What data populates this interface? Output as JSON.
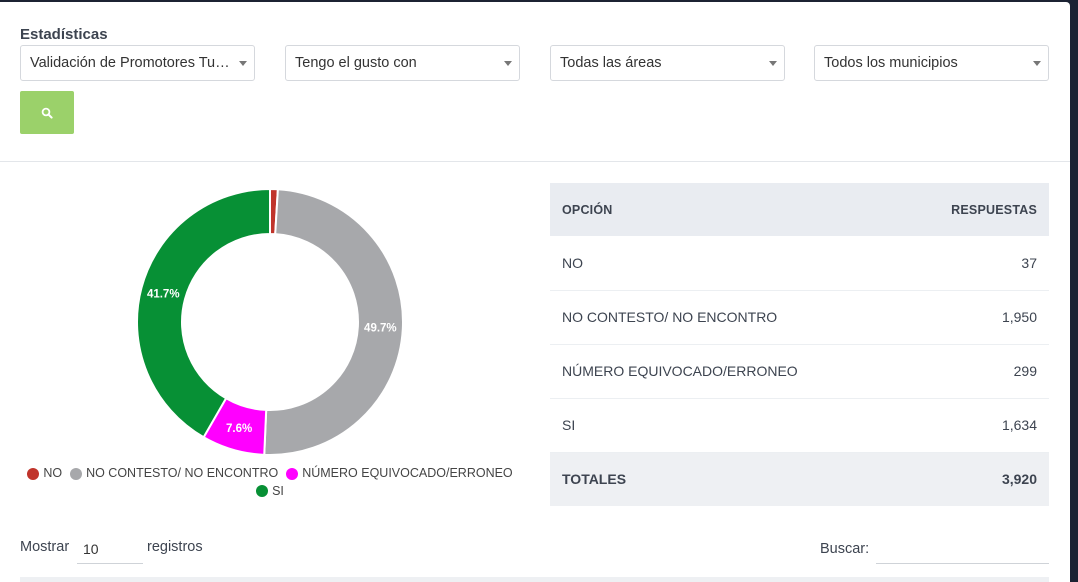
{
  "page": {
    "title": "Estadísticas"
  },
  "filters": [
    {
      "value": "Validación de Promotores Tulancingo"
    },
    {
      "value": "Tengo el gusto con"
    },
    {
      "value": "Todas las áreas"
    },
    {
      "value": "Todos los municipios"
    }
  ],
  "search_button": {
    "icon": "search-icon"
  },
  "colors": {
    "no": "#c0342b",
    "no_contesto": "#a7a8ab",
    "numero_equivocado": "#ff00ff",
    "si": "#079035",
    "search_button": "#9bd16a"
  },
  "chart_data": {
    "type": "pie",
    "categories": [
      "NO",
      "NO CONTESTO/ NO ENCONTRO",
      "NÚMERO EQUIVOCADO/ERRONEO",
      "SI"
    ],
    "values": [
      37,
      1950,
      299,
      1634
    ],
    "labels": [
      "",
      "49.7%",
      "7.6%",
      "41.7%"
    ],
    "colors": [
      "#c0342b",
      "#a7a8ab",
      "#ff00ff",
      "#079035"
    ],
    "legend": "bottom"
  },
  "table": {
    "headers": [
      "OPCIÓN",
      "RESPUESTAS"
    ],
    "rows": [
      [
        "NO",
        "37"
      ],
      [
        "NO CONTESTO/ NO ENCONTRO",
        "1,950"
      ],
      [
        "NÚMERO EQUIVOCADO/ERRONEO",
        "299"
      ],
      [
        "SI",
        "1,634"
      ]
    ],
    "total": [
      "TOTALES",
      "3,920"
    ]
  },
  "datatable": {
    "show_label": "Mostrar",
    "length_value": "10",
    "records_label": "registros",
    "search_label": "Buscar:"
  }
}
